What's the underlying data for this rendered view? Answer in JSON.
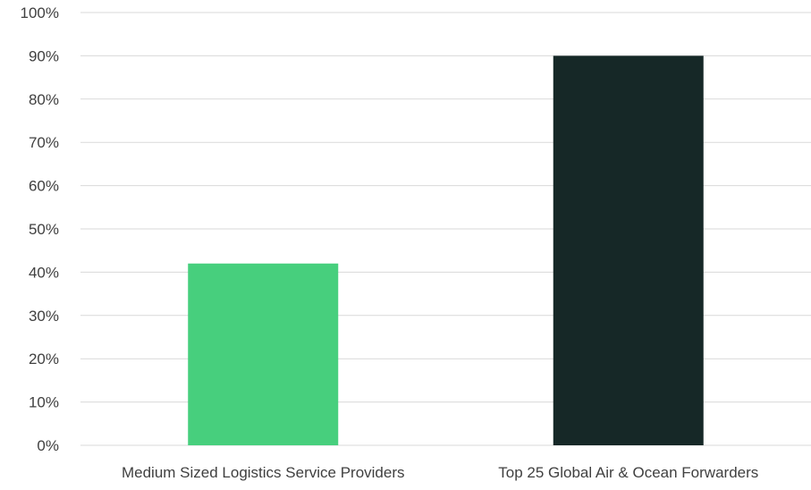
{
  "chart_data": {
    "type": "bar",
    "categories": [
      "Medium Sized Logistics Service Providers",
      "Top 25 Global Air & Ocean Forwarders"
    ],
    "values": [
      0.42,
      0.9
    ],
    "value_format": "percent",
    "ylim": [
      0,
      1
    ],
    "yticks": [
      0,
      0.1,
      0.2,
      0.3,
      0.4,
      0.5,
      0.6,
      0.7,
      0.8,
      0.9,
      1.0
    ],
    "ytick_labels": [
      "0%",
      "10%",
      "20%",
      "30%",
      "40%",
      "50%",
      "60%",
      "70%",
      "80%",
      "90%",
      "100%"
    ],
    "bar_colors": [
      "#47cf7d",
      "#162827"
    ],
    "grid": true,
    "gridline_color": "#d9d9d9",
    "legend": "none",
    "title": "",
    "xlabel": "",
    "ylabel": ""
  }
}
